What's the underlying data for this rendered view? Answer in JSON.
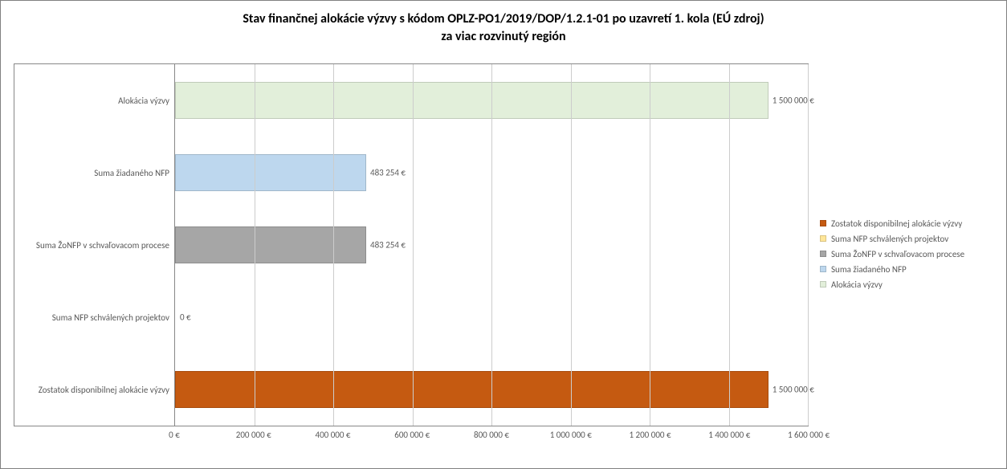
{
  "chart": {
    "type": "bar",
    "orientation": "horizontal",
    "title_line1": "Stav finančnej alokácie výzvy s kódom OPLZ-PO1/2019/DOP/1.2.1-01 po uzavretí 1. kola (EÚ zdroj)",
    "title_line2": "za viac rozvinutý región",
    "title_fontsize": 16,
    "title_color": "#000000",
    "background_color": "#ffffff",
    "border_color": "#808080",
    "grid_color": "#cccccc",
    "axis_color": "#888888",
    "label_color": "#595959",
    "label_fontsize": 11,
    "xlim": [
      0,
      1600000
    ],
    "xtick_step": 200000,
    "xticks": [
      {
        "value": 0,
        "label": "0 €"
      },
      {
        "value": 200000,
        "label": "200 000 €"
      },
      {
        "value": 400000,
        "label": "400 000 €"
      },
      {
        "value": 600000,
        "label": "600 000 €"
      },
      {
        "value": 800000,
        "label": "800 000 €"
      },
      {
        "value": 1000000,
        "label": "1 000 000 €"
      },
      {
        "value": 1200000,
        "label": "1 200 000 €"
      },
      {
        "value": 1400000,
        "label": "1 400 000 €"
      },
      {
        "value": 1600000,
        "label": "1 600 000 €"
      }
    ],
    "categories": [
      {
        "key": "alokacia",
        "label": "Alokácia výzvy",
        "value": 1500000,
        "value_label": "1 500 000 €",
        "color": "#e2efda"
      },
      {
        "key": "ziadane",
        "label": "Suma žiadaného NFP",
        "value": 483254,
        "value_label": "483 254 €",
        "color": "#bdd7ee"
      },
      {
        "key": "proces",
        "label": "Suma ŽoNFP v schvaľovacom procese",
        "value": 483254,
        "value_label": "483 254 €",
        "color": "#a6a6a6"
      },
      {
        "key": "schvalene",
        "label": "Suma NFP schválených projektov",
        "value": 0,
        "value_label": "0 €",
        "color": "#ffe699"
      },
      {
        "key": "zostatok",
        "label": "Zostatok disponibilnej alokácie výzvy",
        "value": 1500000,
        "value_label": "1 500 000 €",
        "color": "#c55a11"
      }
    ],
    "bar_height_pct": 52,
    "legend": {
      "position": "right",
      "items": [
        {
          "label": "Zostatok disponibilnej alokácie výzvy",
          "color": "#c55a11"
        },
        {
          "label": "Suma NFP schválených projektov",
          "color": "#ffe699"
        },
        {
          "label": "Suma ŽoNFP v schvaľovacom procese",
          "color": "#a6a6a6"
        },
        {
          "label": "Suma žiadaného NFP",
          "color": "#bdd7ee"
        },
        {
          "label": "Alokácia výzvy",
          "color": "#e2efda"
        }
      ]
    }
  }
}
